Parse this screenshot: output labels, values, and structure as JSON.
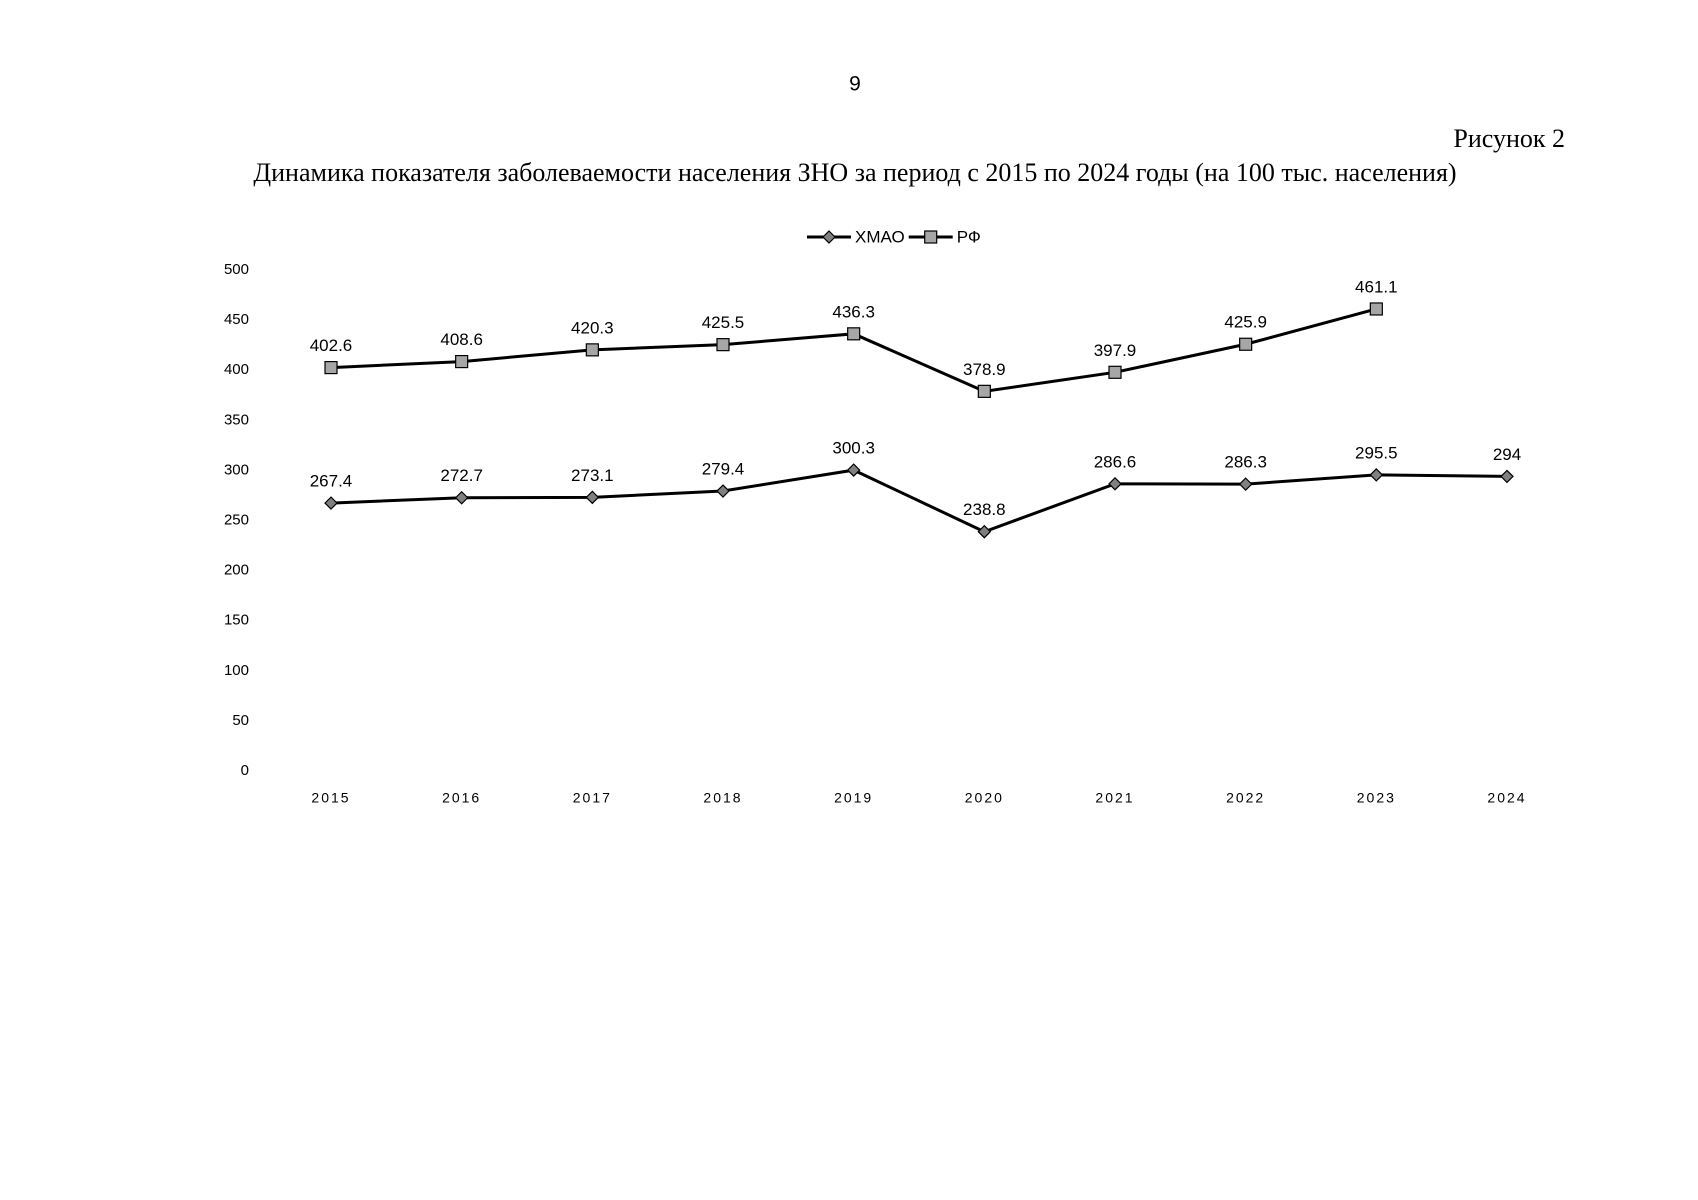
{
  "chart_data": {
    "type": "line",
    "page_number": "9",
    "figure_label": "Рисунок 2",
    "title": "Динамика показателя заболеваемости населения ЗНО за период с 2015 по 2024 годы (на 100 тыс. населения)",
    "categories": [
      "2015",
      "2016",
      "2017",
      "2018",
      "2019",
      "2020",
      "2021",
      "2022",
      "2023",
      "2024"
    ],
    "series": [
      {
        "name": "ХМАО",
        "color": "#808080",
        "marker": "diamond",
        "values": [
          267.4,
          272.7,
          273.1,
          279.4,
          300.3,
          238.8,
          286.6,
          286.3,
          295.5,
          294
        ]
      },
      {
        "name": "РФ",
        "color": "#a6a6a6",
        "marker": "square",
        "values": [
          402.6,
          408.6,
          420.3,
          425.5,
          436.3,
          378.9,
          397.9,
          425.9,
          461.1,
          null
        ]
      }
    ],
    "ylim": [
      0,
      500
    ],
    "yticks": [
      0,
      50,
      100,
      150,
      200,
      250,
      300,
      350,
      400,
      450,
      500
    ],
    "grid": false,
    "legend": "top"
  }
}
